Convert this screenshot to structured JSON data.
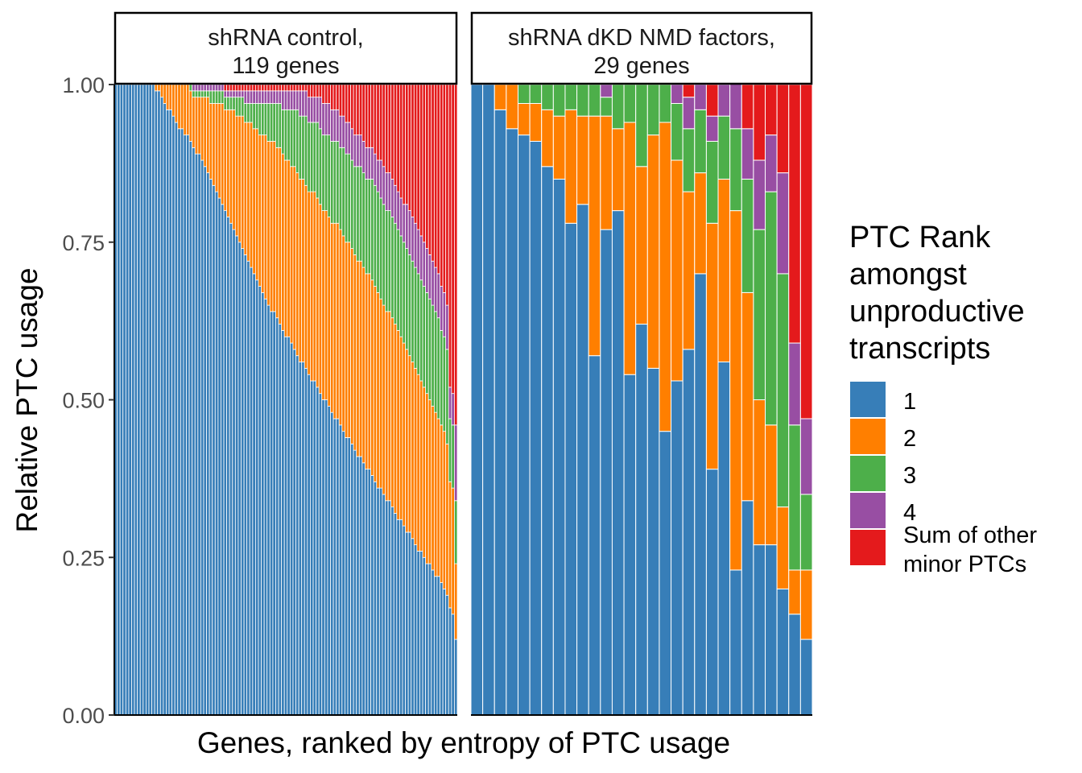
{
  "chart_data": {
    "type": "bar",
    "stacked": true,
    "ylabel": "Relative PTC usage",
    "xlabel": "Genes, ranked by entropy of PTC usage",
    "ylim": [
      0,
      1
    ],
    "y_ticks": [
      "0.00",
      "0.25",
      "0.50",
      "0.75",
      "1.00"
    ],
    "legend": {
      "title": [
        "PTC Rank",
        "amongst",
        "unproductive",
        "transcripts"
      ],
      "placement": "right",
      "entries": [
        {
          "key": "rank1",
          "label": [
            "1"
          ],
          "color": "#377EB8"
        },
        {
          "key": "rank2",
          "label": [
            "2"
          ],
          "color": "#FF7F00"
        },
        {
          "key": "rank3",
          "label": [
            "3"
          ],
          "color": "#4DAF4A"
        },
        {
          "key": "rank4",
          "label": [
            "4"
          ],
          "color": "#984EA3"
        },
        {
          "key": "other",
          "label": [
            "Sum of other",
            "minor PTCs"
          ],
          "color": "#E41A1C"
        }
      ]
    },
    "facets": [
      {
        "strip": [
          "shRNA control,",
          "119 genes"
        ],
        "bars": [
          [
            1.0,
            0,
            0,
            0,
            0
          ],
          [
            1.0,
            0,
            0,
            0,
            0
          ],
          [
            1.0,
            0,
            0,
            0,
            0
          ],
          [
            1.0,
            0,
            0,
            0,
            0
          ],
          [
            1.0,
            0,
            0,
            0,
            0
          ],
          [
            1.0,
            0,
            0,
            0,
            0
          ],
          [
            1.0,
            0,
            0,
            0,
            0
          ],
          [
            1.0,
            0,
            0,
            0,
            0
          ],
          [
            1.0,
            0,
            0,
            0,
            0
          ],
          [
            1.0,
            0,
            0,
            0,
            0
          ],
          [
            1.0,
            0,
            0,
            0,
            0
          ],
          [
            1.0,
            0,
            0,
            0,
            0
          ],
          [
            1.0,
            0,
            0,
            0,
            0
          ],
          [
            1.0,
            0,
            0,
            0,
            0
          ],
          [
            0.99,
            0.01,
            0,
            0,
            0
          ],
          [
            0.99,
            0.01,
            0,
            0,
            0
          ],
          [
            0.98,
            0.02,
            0,
            0,
            0
          ],
          [
            0.97,
            0.03,
            0,
            0,
            0
          ],
          [
            0.96,
            0.04,
            0,
            0,
            0
          ],
          [
            0.96,
            0.04,
            0,
            0,
            0
          ],
          [
            0.95,
            0.05,
            0,
            0,
            0
          ],
          [
            0.94,
            0.06,
            0,
            0,
            0
          ],
          [
            0.93,
            0.07,
            0,
            0,
            0
          ],
          [
            0.93,
            0.07,
            0,
            0,
            0
          ],
          [
            0.92,
            0.08,
            0,
            0,
            0
          ],
          [
            0.92,
            0.08,
            0,
            0,
            0
          ],
          [
            0.91,
            0.08,
            0.01,
            0,
            0
          ],
          [
            0.9,
            0.08,
            0.01,
            0.01,
            0
          ],
          [
            0.89,
            0.09,
            0.01,
            0.01,
            0
          ],
          [
            0.89,
            0.09,
            0.01,
            0.01,
            0
          ],
          [
            0.88,
            0.1,
            0.01,
            0.01,
            0
          ],
          [
            0.87,
            0.11,
            0.01,
            0.01,
            0
          ],
          [
            0.86,
            0.12,
            0.01,
            0.01,
            0
          ],
          [
            0.85,
            0.12,
            0.02,
            0.01,
            0
          ],
          [
            0.84,
            0.13,
            0.02,
            0.01,
            0
          ],
          [
            0.83,
            0.14,
            0.02,
            0.01,
            0
          ],
          [
            0.82,
            0.15,
            0.02,
            0.01,
            0
          ],
          [
            0.81,
            0.16,
            0.02,
            0.01,
            0
          ],
          [
            0.8,
            0.16,
            0.02,
            0.01,
            0.01
          ],
          [
            0.79,
            0.17,
            0.02,
            0.01,
            0.01
          ],
          [
            0.78,
            0.18,
            0.02,
            0.01,
            0.01
          ],
          [
            0.77,
            0.19,
            0.02,
            0.01,
            0.01
          ],
          [
            0.76,
            0.19,
            0.03,
            0.01,
            0.01
          ],
          [
            0.75,
            0.2,
            0.03,
            0.01,
            0.01
          ],
          [
            0.74,
            0.21,
            0.03,
            0.01,
            0.01
          ],
          [
            0.73,
            0.21,
            0.03,
            0.02,
            0.01
          ],
          [
            0.72,
            0.22,
            0.03,
            0.02,
            0.01
          ],
          [
            0.71,
            0.23,
            0.03,
            0.02,
            0.01
          ],
          [
            0.7,
            0.23,
            0.04,
            0.02,
            0.01
          ],
          [
            0.69,
            0.24,
            0.04,
            0.02,
            0.01
          ],
          [
            0.68,
            0.24,
            0.05,
            0.02,
            0.01
          ],
          [
            0.67,
            0.25,
            0.05,
            0.02,
            0.01
          ],
          [
            0.66,
            0.26,
            0.05,
            0.02,
            0.01
          ],
          [
            0.65,
            0.26,
            0.06,
            0.02,
            0.01
          ],
          [
            0.64,
            0.27,
            0.06,
            0.02,
            0.01
          ],
          [
            0.64,
            0.27,
            0.06,
            0.02,
            0.01
          ],
          [
            0.63,
            0.27,
            0.07,
            0.02,
            0.01
          ],
          [
            0.62,
            0.28,
            0.07,
            0.02,
            0.01
          ],
          [
            0.61,
            0.28,
            0.07,
            0.03,
            0.01
          ],
          [
            0.6,
            0.28,
            0.08,
            0.03,
            0.01
          ],
          [
            0.6,
            0.28,
            0.08,
            0.03,
            0.01
          ],
          [
            0.59,
            0.28,
            0.09,
            0.03,
            0.01
          ],
          [
            0.58,
            0.29,
            0.09,
            0.03,
            0.01
          ],
          [
            0.57,
            0.29,
            0.1,
            0.03,
            0.01
          ],
          [
            0.56,
            0.29,
            0.1,
            0.04,
            0.01
          ],
          [
            0.56,
            0.29,
            0.1,
            0.04,
            0.01
          ],
          [
            0.55,
            0.29,
            0.11,
            0.04,
            0.01
          ],
          [
            0.54,
            0.29,
            0.11,
            0.04,
            0.02
          ],
          [
            0.53,
            0.3,
            0.11,
            0.04,
            0.02
          ],
          [
            0.53,
            0.3,
            0.11,
            0.04,
            0.02
          ],
          [
            0.52,
            0.3,
            0.12,
            0.04,
            0.02
          ],
          [
            0.51,
            0.3,
            0.12,
            0.05,
            0.02
          ],
          [
            0.5,
            0.3,
            0.12,
            0.05,
            0.03
          ],
          [
            0.5,
            0.3,
            0.12,
            0.05,
            0.03
          ],
          [
            0.49,
            0.3,
            0.13,
            0.05,
            0.03
          ],
          [
            0.48,
            0.3,
            0.13,
            0.05,
            0.04
          ],
          [
            0.47,
            0.31,
            0.13,
            0.05,
            0.04
          ],
          [
            0.47,
            0.31,
            0.13,
            0.05,
            0.04
          ],
          [
            0.46,
            0.31,
            0.13,
            0.05,
            0.05
          ],
          [
            0.45,
            0.31,
            0.14,
            0.05,
            0.05
          ],
          [
            0.44,
            0.31,
            0.14,
            0.05,
            0.06
          ],
          [
            0.44,
            0.31,
            0.14,
            0.05,
            0.06
          ],
          [
            0.43,
            0.31,
            0.14,
            0.05,
            0.07
          ],
          [
            0.42,
            0.31,
            0.14,
            0.05,
            0.08
          ],
          [
            0.41,
            0.31,
            0.15,
            0.05,
            0.08
          ],
          [
            0.41,
            0.31,
            0.15,
            0.05,
            0.08
          ],
          [
            0.4,
            0.31,
            0.15,
            0.05,
            0.09
          ],
          [
            0.39,
            0.31,
            0.15,
            0.05,
            0.1
          ],
          [
            0.39,
            0.31,
            0.15,
            0.05,
            0.1
          ],
          [
            0.38,
            0.31,
            0.16,
            0.05,
            0.1
          ],
          [
            0.37,
            0.31,
            0.16,
            0.05,
            0.11
          ],
          [
            0.36,
            0.31,
            0.16,
            0.05,
            0.12
          ],
          [
            0.36,
            0.3,
            0.16,
            0.06,
            0.12
          ],
          [
            0.35,
            0.3,
            0.16,
            0.06,
            0.13
          ],
          [
            0.34,
            0.3,
            0.16,
            0.06,
            0.14
          ],
          [
            0.34,
            0.3,
            0.16,
            0.06,
            0.14
          ],
          [
            0.33,
            0.3,
            0.16,
            0.06,
            0.15
          ],
          [
            0.32,
            0.3,
            0.16,
            0.06,
            0.16
          ],
          [
            0.31,
            0.3,
            0.16,
            0.06,
            0.17
          ],
          [
            0.31,
            0.29,
            0.16,
            0.06,
            0.18
          ],
          [
            0.3,
            0.29,
            0.16,
            0.06,
            0.19
          ],
          [
            0.29,
            0.29,
            0.16,
            0.07,
            0.19
          ],
          [
            0.29,
            0.28,
            0.16,
            0.07,
            0.2
          ],
          [
            0.28,
            0.28,
            0.16,
            0.07,
            0.21
          ],
          [
            0.27,
            0.28,
            0.16,
            0.07,
            0.22
          ],
          [
            0.26,
            0.28,
            0.16,
            0.07,
            0.23
          ],
          [
            0.26,
            0.27,
            0.16,
            0.07,
            0.24
          ],
          [
            0.25,
            0.27,
            0.16,
            0.07,
            0.25
          ],
          [
            0.24,
            0.27,
            0.16,
            0.07,
            0.26
          ],
          [
            0.24,
            0.26,
            0.16,
            0.07,
            0.27
          ],
          [
            0.23,
            0.26,
            0.16,
            0.07,
            0.28
          ],
          [
            0.22,
            0.26,
            0.16,
            0.07,
            0.29
          ],
          [
            0.22,
            0.25,
            0.16,
            0.07,
            0.3
          ],
          [
            0.21,
            0.25,
            0.15,
            0.07,
            0.32
          ],
          [
            0.2,
            0.25,
            0.15,
            0.07,
            0.33
          ],
          [
            0.19,
            0.24,
            0.15,
            0.07,
            0.35
          ],
          [
            0.17,
            0.2,
            0.1,
            0.05,
            0.48
          ],
          [
            0.16,
            0.2,
            0.1,
            0.05,
            0.49
          ],
          [
            0.12,
            0.12,
            0.1,
            0.12,
            0.54
          ]
        ]
      },
      {
        "strip": [
          "shRNA dKD NMD factors,",
          "29 genes"
        ],
        "bars": [
          [
            1.0,
            0,
            0,
            0,
            0
          ],
          [
            1.0,
            0,
            0,
            0,
            0
          ],
          [
            0.96,
            0.04,
            0,
            0,
            0
          ],
          [
            0.93,
            0.07,
            0,
            0,
            0
          ],
          [
            0.92,
            0.05,
            0.03,
            0,
            0
          ],
          [
            0.91,
            0.06,
            0.03,
            0,
            0
          ],
          [
            0.87,
            0.09,
            0.04,
            0,
            0
          ],
          [
            0.85,
            0.1,
            0.05,
            0,
            0
          ],
          [
            0.78,
            0.18,
            0.04,
            0,
            0
          ],
          [
            0.81,
            0.14,
            0.05,
            0,
            0
          ],
          [
            0.57,
            0.38,
            0.05,
            0,
            0
          ],
          [
            0.77,
            0.18,
            0.03,
            0.02,
            0
          ],
          [
            0.8,
            0.13,
            0.07,
            0,
            0
          ],
          [
            0.54,
            0.4,
            0.06,
            0,
            0
          ],
          [
            0.62,
            0.25,
            0.13,
            0,
            0
          ],
          [
            0.55,
            0.37,
            0.08,
            0,
            0
          ],
          [
            0.45,
            0.49,
            0.06,
            0,
            0
          ],
          [
            0.53,
            0.35,
            0.09,
            0.03,
            0
          ],
          [
            0.58,
            0.25,
            0.1,
            0.05,
            0.02
          ],
          [
            0.7,
            0.16,
            0.1,
            0.04,
            0
          ],
          [
            0.39,
            0.39,
            0.13,
            0.04,
            0.05
          ],
          [
            0.56,
            0.29,
            0.1,
            0.05,
            0
          ],
          [
            0.23,
            0.57,
            0.13,
            0.1,
            0.07
          ],
          [
            0.34,
            0.33,
            0.18,
            0.08,
            0.07
          ],
          [
            0.27,
            0.23,
            0.27,
            0.11,
            0.12
          ],
          [
            0.27,
            0.19,
            0.37,
            0.09,
            0.08
          ],
          [
            0.2,
            0.13,
            0.37,
            0.16,
            0.14
          ],
          [
            0.16,
            0.07,
            0.23,
            0.13,
            0.41
          ],
          [
            0.12,
            0.11,
            0.12,
            0.12,
            0.53
          ]
        ]
      }
    ]
  }
}
